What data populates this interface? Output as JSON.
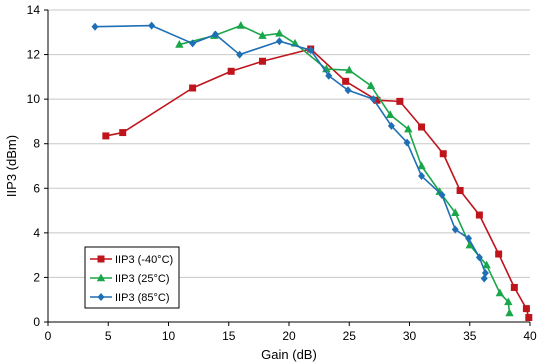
{
  "chart_data": {
    "type": "line",
    "xlabel": "Gain (dB)",
    "ylabel": "IIP3 (dBm)",
    "xlim": [
      0,
      40
    ],
    "ylim": [
      0,
      14
    ],
    "xticks": [
      0,
      5,
      10,
      15,
      20,
      25,
      30,
      35,
      40
    ],
    "yticks": [
      0,
      2,
      4,
      6,
      8,
      10,
      12,
      14
    ],
    "grid": "horizontal",
    "legend_position": "bottom-left",
    "series": [
      {
        "name": "IIP3 (-40°C)",
        "color": "#c0141c",
        "marker": "square",
        "x": [
          4.8,
          6.2,
          12.0,
          15.2,
          17.8,
          21.8,
          24.7,
          27.3,
          29.2,
          31.0,
          32.8,
          34.2,
          35.8,
          37.4,
          38.7,
          39.7,
          39.9
        ],
        "y": [
          8.35,
          8.5,
          10.5,
          11.25,
          11.7,
          12.25,
          10.8,
          9.95,
          9.9,
          8.75,
          7.55,
          5.9,
          4.8,
          3.05,
          1.55,
          0.6,
          0.2
        ]
      },
      {
        "name": "IIP3 (25°C)",
        "color": "#1aa64a",
        "marker": "triangle",
        "x": [
          10.9,
          13.8,
          16.0,
          17.8,
          19.2,
          20.5,
          23.1,
          25.0,
          26.8,
          28.4,
          29.9,
          31.0,
          32.5,
          33.8,
          35.0,
          36.4,
          37.5,
          38.2,
          38.3
        ],
        "y": [
          12.45,
          12.85,
          13.3,
          12.85,
          12.95,
          12.5,
          11.35,
          11.3,
          10.6,
          9.3,
          8.65,
          7.0,
          5.85,
          4.9,
          3.45,
          2.55,
          1.3,
          0.9,
          0.4
        ]
      },
      {
        "name": "IIP3 (85°C)",
        "color": "#1f6fb5",
        "marker": "diamond",
        "x": [
          3.9,
          8.6,
          12.0,
          13.9,
          15.9,
          19.2,
          21.8,
          23.3,
          24.9,
          27.0,
          28.5,
          29.8,
          31.0,
          32.7,
          33.8,
          34.9,
          35.8,
          36.3,
          36.2
        ],
        "y": [
          13.25,
          13.3,
          12.5,
          12.9,
          12.0,
          12.6,
          12.2,
          11.05,
          10.4,
          10.0,
          8.8,
          8.05,
          6.55,
          5.7,
          4.15,
          3.75,
          2.9,
          2.2,
          1.95
        ]
      }
    ]
  }
}
